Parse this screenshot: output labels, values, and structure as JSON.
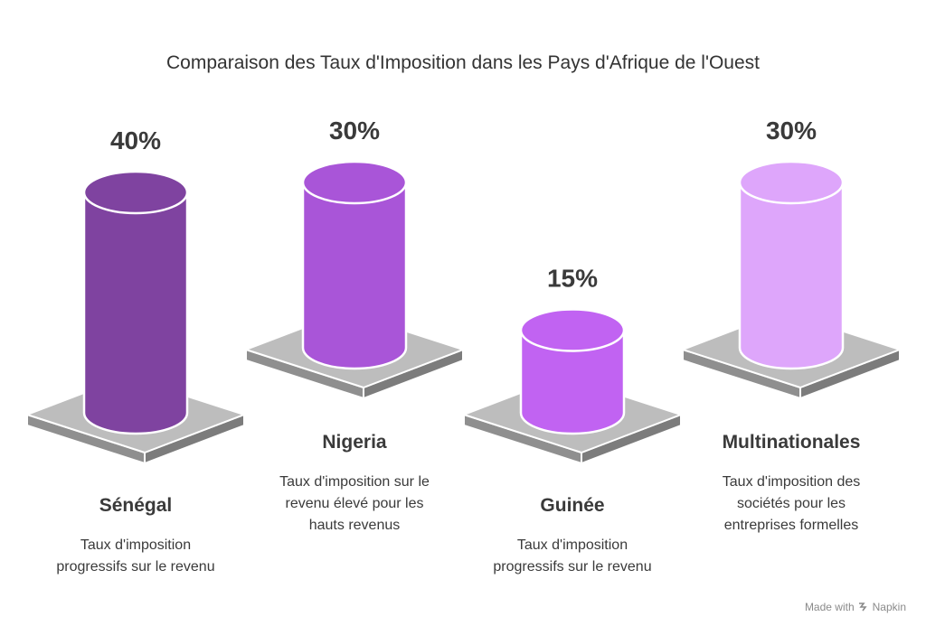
{
  "chart_data": {
    "type": "bar",
    "title": "Comparaison des Taux d'Imposition dans les Pays d'Afrique de l'Ouest",
    "categories": [
      "Sénégal",
      "Nigeria",
      "Guinée",
      "Multinationales"
    ],
    "values": [
      40,
      30,
      15,
      30
    ],
    "value_labels": [
      "40%",
      "30%",
      "15%",
      "30%"
    ],
    "descriptions": [
      [
        "Taux d'imposition",
        "progressifs sur le revenu"
      ],
      [
        "Taux d'imposition sur le",
        "revenu élevé pour les",
        "hauts revenus"
      ],
      [
        "Taux d'imposition",
        "progressifs sur le revenu"
      ],
      [
        "Taux d'imposition des",
        "sociétés pour les",
        "entreprises formelles"
      ]
    ],
    "colors": [
      "#7f43a0",
      "#a955d8",
      "#c163f2",
      "#dea6fb"
    ],
    "grid": false,
    "legend": "none"
  },
  "watermark": {
    "text": "Made with",
    "brand": "Napkin",
    "icon": "napkin-logo-icon"
  }
}
